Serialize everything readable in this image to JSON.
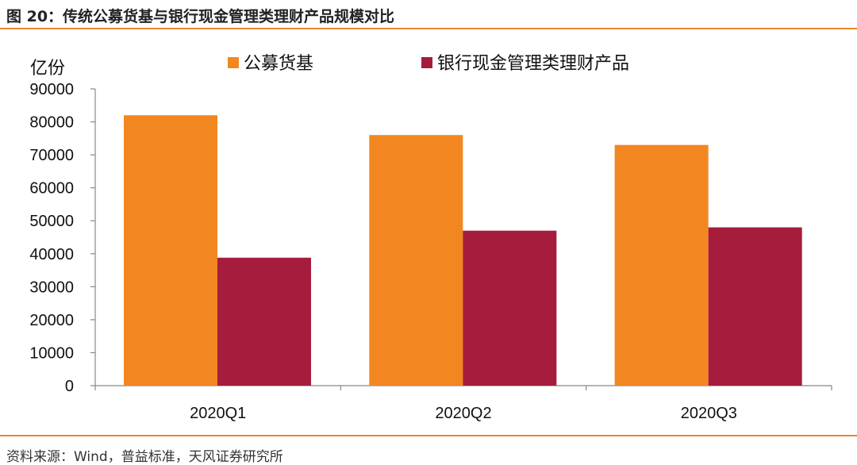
{
  "figure": {
    "title": "图 20：传统公募货基与银行现金管理类理财产品规模对比",
    "source": "资料来源：Wind，普益标准，天风证券研究所",
    "colors": {
      "accent_rule": "#e8872c"
    }
  },
  "chart_data": {
    "type": "bar",
    "title": "",
    "xlabel": "",
    "ylabel": "亿份",
    "categories": [
      "2020Q1",
      "2020Q2",
      "2020Q3"
    ],
    "series": [
      {
        "name": "公募货基",
        "color": "#f28721",
        "values": [
          82000,
          76000,
          73000
        ]
      },
      {
        "name": "银行现金管理类理财产品",
        "color": "#a51c3c",
        "values": [
          38800,
          47000,
          48000
        ]
      }
    ],
    "ylim": [
      0,
      90000
    ],
    "yticks": [
      "0",
      "10000",
      "20000",
      "30000",
      "40000",
      "50000",
      "60000",
      "70000",
      "80000",
      "90000"
    ],
    "grid": false,
    "legend_position": "top"
  }
}
